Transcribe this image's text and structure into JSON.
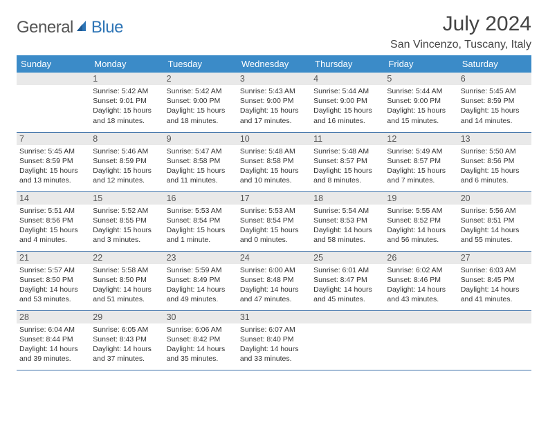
{
  "brand_part1": "General",
  "brand_part2": "Blue",
  "brand_color": "#2e75b6",
  "header_bg": "#3b8bc8",
  "row_border": "#3b6fa8",
  "daynum_bg": "#e9e9e9",
  "title": "July 2024",
  "location": "San Vincenzo, Tuscany, Italy",
  "day_headers": [
    "Sunday",
    "Monday",
    "Tuesday",
    "Wednesday",
    "Thursday",
    "Friday",
    "Saturday"
  ],
  "weeks": [
    [
      {
        "n": "",
        "lines": []
      },
      {
        "n": "1",
        "lines": [
          "Sunrise: 5:42 AM",
          "Sunset: 9:01 PM",
          "Daylight: 15 hours",
          "and 18 minutes."
        ]
      },
      {
        "n": "2",
        "lines": [
          "Sunrise: 5:42 AM",
          "Sunset: 9:00 PM",
          "Daylight: 15 hours",
          "and 18 minutes."
        ]
      },
      {
        "n": "3",
        "lines": [
          "Sunrise: 5:43 AM",
          "Sunset: 9:00 PM",
          "Daylight: 15 hours",
          "and 17 minutes."
        ]
      },
      {
        "n": "4",
        "lines": [
          "Sunrise: 5:44 AM",
          "Sunset: 9:00 PM",
          "Daylight: 15 hours",
          "and 16 minutes."
        ]
      },
      {
        "n": "5",
        "lines": [
          "Sunrise: 5:44 AM",
          "Sunset: 9:00 PM",
          "Daylight: 15 hours",
          "and 15 minutes."
        ]
      },
      {
        "n": "6",
        "lines": [
          "Sunrise: 5:45 AM",
          "Sunset: 8:59 PM",
          "Daylight: 15 hours",
          "and 14 minutes."
        ]
      }
    ],
    [
      {
        "n": "7",
        "lines": [
          "Sunrise: 5:45 AM",
          "Sunset: 8:59 PM",
          "Daylight: 15 hours",
          "and 13 minutes."
        ]
      },
      {
        "n": "8",
        "lines": [
          "Sunrise: 5:46 AM",
          "Sunset: 8:59 PM",
          "Daylight: 15 hours",
          "and 12 minutes."
        ]
      },
      {
        "n": "9",
        "lines": [
          "Sunrise: 5:47 AM",
          "Sunset: 8:58 PM",
          "Daylight: 15 hours",
          "and 11 minutes."
        ]
      },
      {
        "n": "10",
        "lines": [
          "Sunrise: 5:48 AM",
          "Sunset: 8:58 PM",
          "Daylight: 15 hours",
          "and 10 minutes."
        ]
      },
      {
        "n": "11",
        "lines": [
          "Sunrise: 5:48 AM",
          "Sunset: 8:57 PM",
          "Daylight: 15 hours",
          "and 8 minutes."
        ]
      },
      {
        "n": "12",
        "lines": [
          "Sunrise: 5:49 AM",
          "Sunset: 8:57 PM",
          "Daylight: 15 hours",
          "and 7 minutes."
        ]
      },
      {
        "n": "13",
        "lines": [
          "Sunrise: 5:50 AM",
          "Sunset: 8:56 PM",
          "Daylight: 15 hours",
          "and 6 minutes."
        ]
      }
    ],
    [
      {
        "n": "14",
        "lines": [
          "Sunrise: 5:51 AM",
          "Sunset: 8:56 PM",
          "Daylight: 15 hours",
          "and 4 minutes."
        ]
      },
      {
        "n": "15",
        "lines": [
          "Sunrise: 5:52 AM",
          "Sunset: 8:55 PM",
          "Daylight: 15 hours",
          "and 3 minutes."
        ]
      },
      {
        "n": "16",
        "lines": [
          "Sunrise: 5:53 AM",
          "Sunset: 8:54 PM",
          "Daylight: 15 hours",
          "and 1 minute."
        ]
      },
      {
        "n": "17",
        "lines": [
          "Sunrise: 5:53 AM",
          "Sunset: 8:54 PM",
          "Daylight: 15 hours",
          "and 0 minutes."
        ]
      },
      {
        "n": "18",
        "lines": [
          "Sunrise: 5:54 AM",
          "Sunset: 8:53 PM",
          "Daylight: 14 hours",
          "and 58 minutes."
        ]
      },
      {
        "n": "19",
        "lines": [
          "Sunrise: 5:55 AM",
          "Sunset: 8:52 PM",
          "Daylight: 14 hours",
          "and 56 minutes."
        ]
      },
      {
        "n": "20",
        "lines": [
          "Sunrise: 5:56 AM",
          "Sunset: 8:51 PM",
          "Daylight: 14 hours",
          "and 55 minutes."
        ]
      }
    ],
    [
      {
        "n": "21",
        "lines": [
          "Sunrise: 5:57 AM",
          "Sunset: 8:50 PM",
          "Daylight: 14 hours",
          "and 53 minutes."
        ]
      },
      {
        "n": "22",
        "lines": [
          "Sunrise: 5:58 AM",
          "Sunset: 8:50 PM",
          "Daylight: 14 hours",
          "and 51 minutes."
        ]
      },
      {
        "n": "23",
        "lines": [
          "Sunrise: 5:59 AM",
          "Sunset: 8:49 PM",
          "Daylight: 14 hours",
          "and 49 minutes."
        ]
      },
      {
        "n": "24",
        "lines": [
          "Sunrise: 6:00 AM",
          "Sunset: 8:48 PM",
          "Daylight: 14 hours",
          "and 47 minutes."
        ]
      },
      {
        "n": "25",
        "lines": [
          "Sunrise: 6:01 AM",
          "Sunset: 8:47 PM",
          "Daylight: 14 hours",
          "and 45 minutes."
        ]
      },
      {
        "n": "26",
        "lines": [
          "Sunrise: 6:02 AM",
          "Sunset: 8:46 PM",
          "Daylight: 14 hours",
          "and 43 minutes."
        ]
      },
      {
        "n": "27",
        "lines": [
          "Sunrise: 6:03 AM",
          "Sunset: 8:45 PM",
          "Daylight: 14 hours",
          "and 41 minutes."
        ]
      }
    ],
    [
      {
        "n": "28",
        "lines": [
          "Sunrise: 6:04 AM",
          "Sunset: 8:44 PM",
          "Daylight: 14 hours",
          "and 39 minutes."
        ]
      },
      {
        "n": "29",
        "lines": [
          "Sunrise: 6:05 AM",
          "Sunset: 8:43 PM",
          "Daylight: 14 hours",
          "and 37 minutes."
        ]
      },
      {
        "n": "30",
        "lines": [
          "Sunrise: 6:06 AM",
          "Sunset: 8:42 PM",
          "Daylight: 14 hours",
          "and 35 minutes."
        ]
      },
      {
        "n": "31",
        "lines": [
          "Sunrise: 6:07 AM",
          "Sunset: 8:40 PM",
          "Daylight: 14 hours",
          "and 33 minutes."
        ]
      },
      {
        "n": "",
        "lines": []
      },
      {
        "n": "",
        "lines": []
      },
      {
        "n": "",
        "lines": []
      }
    ]
  ]
}
